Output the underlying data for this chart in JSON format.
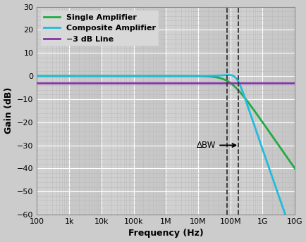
{
  "xlabel": "Frequency (Hz)",
  "ylabel": "Gain (dB)",
  "ylim": [
    -60,
    30
  ],
  "yticks": [
    30,
    20,
    10,
    0,
    -10,
    -20,
    -30,
    -40,
    -50,
    -60
  ],
  "xtick_vals": [
    100,
    1000,
    10000,
    100000,
    1000000,
    10000000,
    100000000,
    1000000000,
    10000000000
  ],
  "xtick_labels": [
    "100",
    "1k",
    "10k",
    "100k",
    "1M",
    "10M",
    "100M",
    "1G",
    "10G"
  ],
  "single_amp_color": "#22aa44",
  "composite_amp_color": "#22bbdd",
  "minus3db_color": "#8833aa",
  "plot_bg_color": "#d8d8d8",
  "fig_bg_color": "#cccccc",
  "white_grid_color": "#ffffff",
  "alt_band_color": "#c0c0c0",
  "dashed_line1": 80000000,
  "dashed_line2": 180000000,
  "minus3db_level": -3,
  "fc_single": 100000000,
  "fc_composite_fn": 160000000,
  "fc_composite_Q": 0.85,
  "annotation_text": "ΔBW",
  "legend_single": "Single Amplifier",
  "legend_composite": "Composite Amplifier",
  "legend_minus3db": "−3 dB Line"
}
